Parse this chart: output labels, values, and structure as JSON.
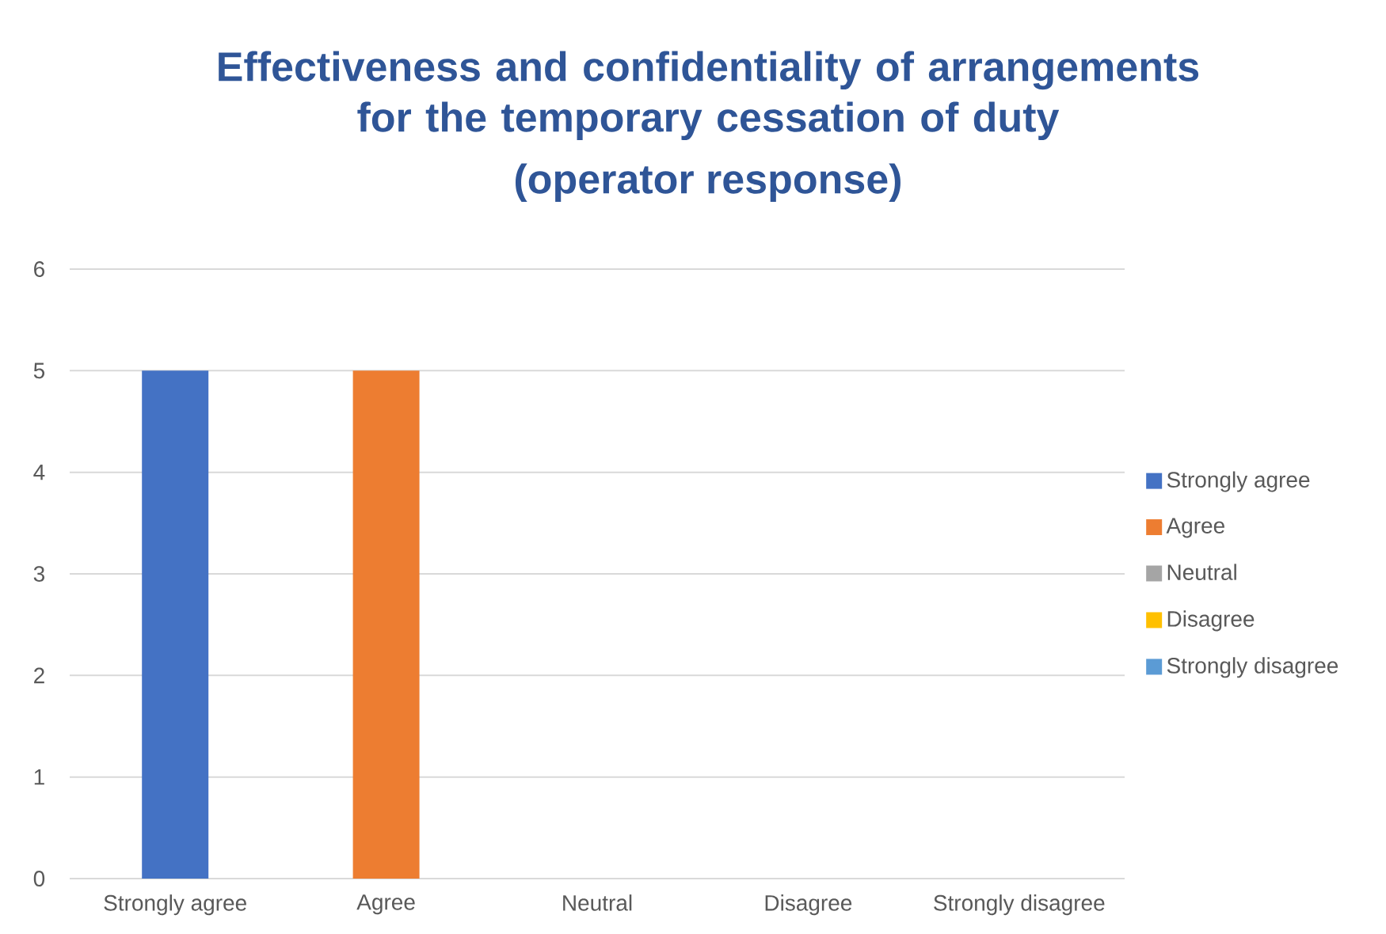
{
  "chart_data": {
    "type": "bar",
    "title": "Effectiveness and confidentiality of arrangements for the temporary cessation of duty",
    "subtitle": "(operator response)",
    "categories": [
      "Strongly agree",
      "Agree",
      "Neutral",
      "Disagree",
      "Strongly disagree"
    ],
    "series": [
      {
        "name": "Strongly agree",
        "color": "#4472c4",
        "values": [
          5,
          null,
          null,
          null,
          null
        ]
      },
      {
        "name": "Agree",
        "color": "#ed7d31",
        "values": [
          null,
          5,
          null,
          null,
          null
        ]
      },
      {
        "name": "Neutral",
        "color": "#a5a5a5",
        "values": [
          null,
          null,
          0,
          null,
          null
        ]
      },
      {
        "name": "Disagree",
        "color": "#ffc000",
        "values": [
          null,
          null,
          null,
          0,
          null
        ]
      },
      {
        "name": "Strongly disagree",
        "color": "#5b9bd5",
        "values": [
          null,
          null,
          null,
          null,
          0
        ]
      }
    ],
    "ylim": [
      0,
      6
    ],
    "yticks": [
      0,
      1,
      2,
      3,
      4,
      5,
      6
    ],
    "grid": "y",
    "legend": "right"
  }
}
